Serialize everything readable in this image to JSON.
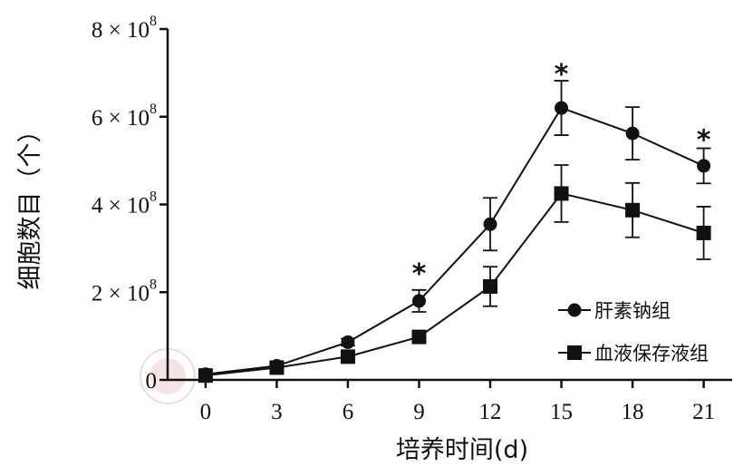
{
  "chart_data": {
    "type": "line",
    "xlabel": "培养时间(d)",
    "ylabel": "细胞数目（个）",
    "x": [
      0,
      3,
      6,
      9,
      12,
      15,
      18,
      21
    ],
    "xlim": [
      -1.6,
      22.2
    ],
    "ylim": [
      0,
      800000000
    ],
    "x_ticks": [
      "0",
      "3",
      "6",
      "9",
      "12",
      "15",
      "18",
      "21"
    ],
    "y_ticks": [
      {
        "value": 0,
        "mantissa": "0",
        "exponent": ""
      },
      {
        "value": 200000000,
        "mantissa": "2 × 10",
        "exponent": "8"
      },
      {
        "value": 400000000,
        "mantissa": "4 × 10",
        "exponent": "8"
      },
      {
        "value": 600000000,
        "mantissa": "6 × 10",
        "exponent": "8"
      },
      {
        "value": 800000000,
        "mantissa": "8 × 10",
        "exponent": "8"
      }
    ],
    "series": [
      {
        "name": "肝素钠组",
        "marker": "circle",
        "values": [
          13000000,
          32000000,
          86000000,
          180000000,
          355000000,
          620000000,
          562000000,
          488000000
        ],
        "error": [
          0,
          5000000,
          8000000,
          25000000,
          60000000,
          62000000,
          60000000,
          40000000
        ]
      },
      {
        "name": "血液保存液组",
        "marker": "square",
        "values": [
          10000000,
          28000000,
          53000000,
          98000000,
          213000000,
          425000000,
          387000000,
          335000000
        ],
        "error": [
          0,
          4000000,
          6000000,
          8000000,
          45000000,
          65000000,
          62000000,
          60000000
        ]
      }
    ],
    "annotations": [
      {
        "x": 9,
        "y": 250000000,
        "text": "*"
      },
      {
        "x": 15,
        "y": 705000000,
        "text": "*"
      },
      {
        "x": 21,
        "y": 555000000,
        "text": "*"
      }
    ],
    "legend_position": "bottom-right",
    "grid": false,
    "colors": {
      "line": "#111111",
      "marker": "#111111",
      "axis": "#111111"
    }
  }
}
